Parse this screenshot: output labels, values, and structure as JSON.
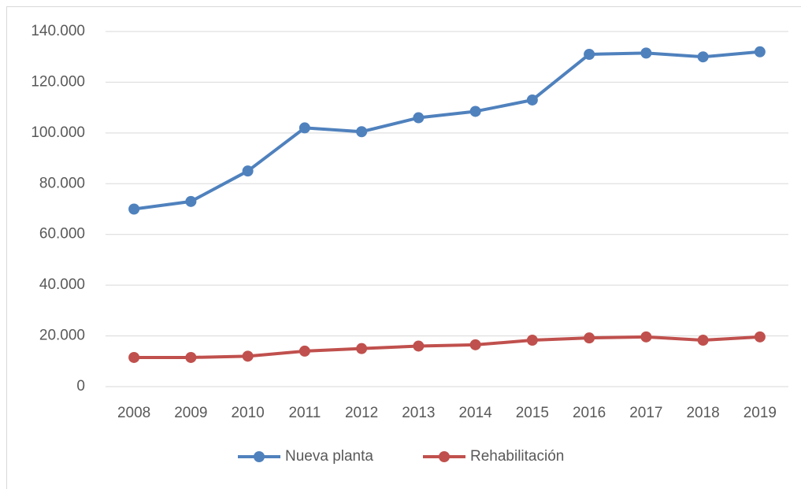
{
  "chart_data": {
    "type": "line",
    "categories": [
      "2008",
      "2009",
      "2010",
      "2011",
      "2012",
      "2013",
      "2014",
      "2015",
      "2016",
      "2017",
      "2018",
      "2019"
    ],
    "series": [
      {
        "name": "Nueva planta",
        "color": "#4f81bd",
        "values": [
          70000,
          73000,
          85000,
          102000,
          100500,
          106000,
          108500,
          113000,
          131000,
          131500,
          130000,
          132000
        ]
      },
      {
        "name": "Rehabilitación",
        "color": "#c0504d",
        "values": [
          11500,
          11500,
          12000,
          14000,
          15000,
          16000,
          16500,
          18300,
          19200,
          19600,
          18300,
          19600
        ]
      }
    ],
    "ylim": [
      0,
      140000
    ],
    "yticks": [
      0,
      {
        "value": 20000,
        "label": "20.000"
      },
      {
        "value": 40000,
        "label": "40.000"
      },
      {
        "value": 60000,
        "label": "60.000"
      },
      {
        "value": 80000,
        "label": "80.000"
      },
      {
        "value": 100000,
        "label": "100.000"
      },
      {
        "value": 120000,
        "label": "120.000"
      },
      {
        "value": 140000,
        "label": "140.000"
      }
    ],
    "grid": true,
    "legend": "bottom"
  }
}
